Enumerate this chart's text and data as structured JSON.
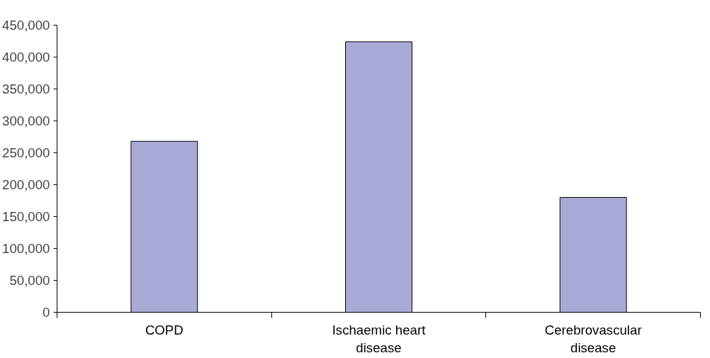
{
  "chart_data": {
    "type": "bar",
    "categories": [
      "COPD",
      "Ischaemic heart\ndisease",
      "Cerebrovascular\ndisease"
    ],
    "values": [
      268000,
      424000,
      180000
    ],
    "color": "#aaaad6",
    "ylim": [
      0,
      450000
    ],
    "yticks": [
      {
        "value": 0,
        "label": "0"
      },
      {
        "value": 50000,
        "label": "50,000"
      },
      {
        "value": 100000,
        "label": "100,000"
      },
      {
        "value": 150000,
        "label": "150,000"
      },
      {
        "value": 200000,
        "label": "200,000"
      },
      {
        "value": 250000,
        "label": "250,000"
      },
      {
        "value": 300000,
        "label": "300,000"
      },
      {
        "value": 350000,
        "label": "350,000"
      },
      {
        "value": 400000,
        "label": "400,000"
      },
      {
        "value": 450000,
        "label": "450,000"
      }
    ],
    "grid": false
  }
}
